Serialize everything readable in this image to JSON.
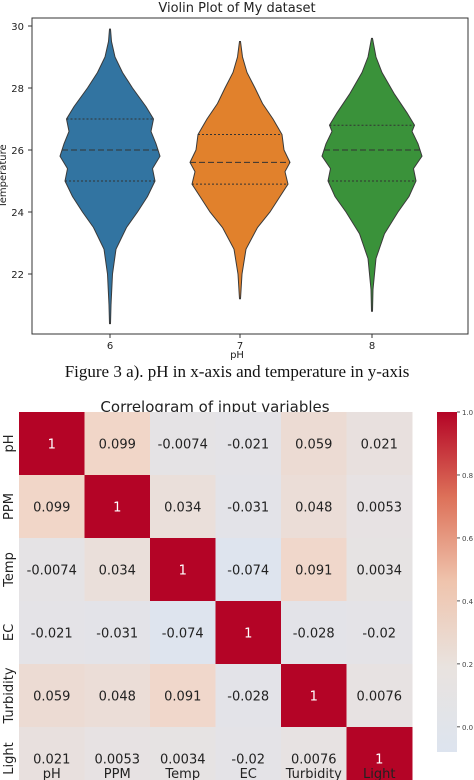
{
  "chart_data": [
    {
      "type": "violin",
      "title": "Violin Plot of My dataset",
      "xlabel": "pH",
      "ylabel": "Temperature",
      "ylim": [
        20,
        30.3
      ],
      "yticks": [
        22,
        24,
        26,
        28,
        30
      ],
      "categories": [
        "6",
        "7",
        "8"
      ],
      "colors": [
        "#3274a1",
        "#e1812c",
        "#3a923a"
      ],
      "series": [
        {
          "category": "6",
          "min": 20.4,
          "max": 29.9,
          "q1": 25.0,
          "median": 26.0,
          "q3": 27.0,
          "profile": [
            [
              20.4,
              0.01
            ],
            [
              21.0,
              0.02
            ],
            [
              22.0,
              0.05
            ],
            [
              22.8,
              0.12
            ],
            [
              23.5,
              0.33
            ],
            [
              24.0,
              0.55
            ],
            [
              24.5,
              0.75
            ],
            [
              25.0,
              0.9
            ],
            [
              25.4,
              0.85
            ],
            [
              25.8,
              1.0
            ],
            [
              26.2,
              0.92
            ],
            [
              26.6,
              0.82
            ],
            [
              27.0,
              0.87
            ],
            [
              27.4,
              0.72
            ],
            [
              28.0,
              0.45
            ],
            [
              28.5,
              0.25
            ],
            [
              29.0,
              0.1
            ],
            [
              29.5,
              0.03
            ],
            [
              29.9,
              0.01
            ]
          ]
        },
        {
          "category": "7",
          "min": 21.2,
          "max": 29.5,
          "q1": 24.9,
          "median": 25.6,
          "q3": 26.5,
          "profile": [
            [
              21.2,
              0.01
            ],
            [
              22.0,
              0.04
            ],
            [
              22.8,
              0.12
            ],
            [
              23.5,
              0.35
            ],
            [
              24.0,
              0.6
            ],
            [
              24.5,
              0.8
            ],
            [
              24.9,
              0.96
            ],
            [
              25.3,
              0.9
            ],
            [
              25.6,
              1.0
            ],
            [
              26.0,
              0.88
            ],
            [
              26.5,
              0.84
            ],
            [
              27.0,
              0.66
            ],
            [
              27.5,
              0.45
            ],
            [
              28.0,
              0.3
            ],
            [
              28.5,
              0.14
            ],
            [
              29.0,
              0.05
            ],
            [
              29.5,
              0.01
            ]
          ]
        },
        {
          "category": "8",
          "min": 20.8,
          "max": 29.6,
          "q1": 25.0,
          "median": 26.0,
          "q3": 26.8,
          "profile": [
            [
              20.8,
              0.01
            ],
            [
              21.5,
              0.02
            ],
            [
              22.5,
              0.08
            ],
            [
              23.3,
              0.25
            ],
            [
              24.0,
              0.52
            ],
            [
              24.5,
              0.74
            ],
            [
              25.0,
              0.88
            ],
            [
              25.4,
              0.83
            ],
            [
              25.8,
              1.0
            ],
            [
              26.2,
              0.92
            ],
            [
              26.6,
              0.8
            ],
            [
              26.8,
              0.85
            ],
            [
              27.2,
              0.7
            ],
            [
              27.8,
              0.45
            ],
            [
              28.5,
              0.2
            ],
            [
              29.0,
              0.08
            ],
            [
              29.6,
              0.01
            ]
          ]
        }
      ]
    },
    {
      "type": "heatmap",
      "title": "Correlogram of input variables",
      "variables": [
        "pH",
        "PPM",
        "Temp",
        "EC",
        "Turbidity",
        "Light"
      ],
      "values": [
        [
          1,
          0.099,
          -0.0074,
          -0.021,
          0.059,
          0.021
        ],
        [
          0.099,
          1,
          0.034,
          -0.031,
          0.048,
          0.0053
        ],
        [
          -0.0074,
          0.034,
          1,
          -0.074,
          0.091,
          0.0034
        ],
        [
          -0.021,
          -0.031,
          -0.074,
          1,
          -0.028,
          -0.02
        ],
        [
          0.059,
          0.048,
          0.091,
          -0.028,
          1,
          0.0076
        ],
        [
          0.021,
          0.0053,
          0.0034,
          -0.02,
          0.0076,
          1
        ]
      ],
      "labels": [
        [
          "1",
          "0.099",
          "-0.0074",
          "-0.021",
          "0.059",
          "0.021"
        ],
        [
          "0.099",
          "1",
          "0.034",
          "-0.031",
          "0.048",
          "0.0053"
        ],
        [
          "-0.0074",
          "0.034",
          "1",
          "-0.074",
          "0.091",
          "0.0034"
        ],
        [
          "-0.021",
          "-0.031",
          "-0.074",
          "1",
          "-0.028",
          "-0.02"
        ],
        [
          "0.059",
          "0.048",
          "0.091",
          "-0.028",
          "1",
          "0.0076"
        ],
        [
          "0.021",
          "0.0053",
          "0.0034",
          "-0.02",
          "0.0076",
          "1"
        ]
      ],
      "colorbar_ticks": [
        "1.0",
        "0.8",
        "0.6",
        "0.4",
        "0.2",
        "0.0"
      ],
      "colorbar_range": [
        -0.08,
        1.0
      ],
      "colormap": "coolwarm"
    }
  ],
  "caption": "Figure 3 a). pH in x-axis and temperature in y-axis"
}
